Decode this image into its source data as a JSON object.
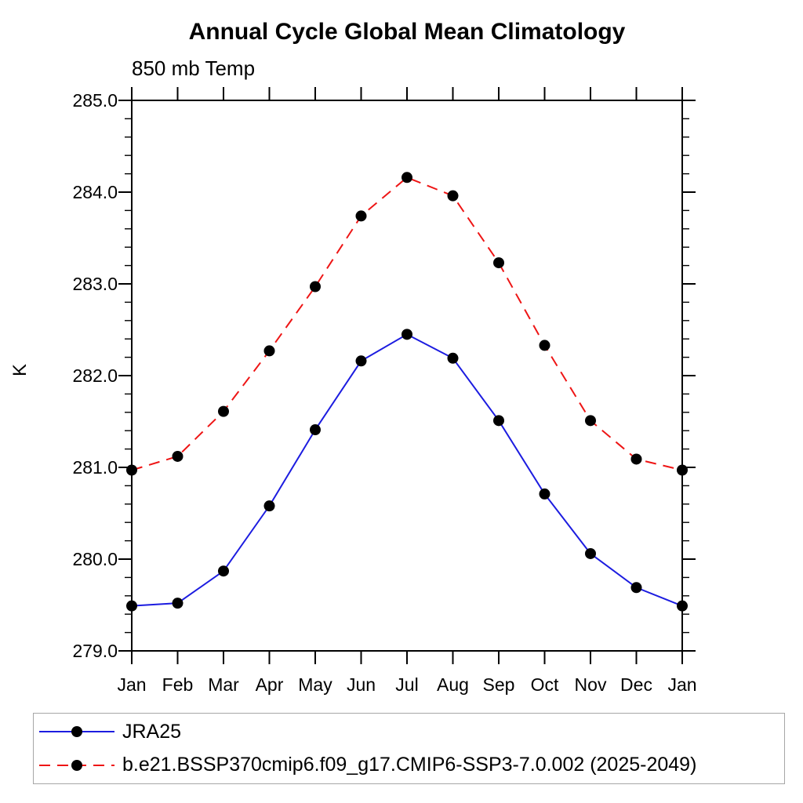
{
  "chart_data": {
    "type": "line",
    "title": "Annual Cycle Global Mean Climatology",
    "subtitle": "850 mb Temp",
    "ylabel": "K",
    "xlabel": "",
    "categories": [
      "Jan",
      "Feb",
      "Mar",
      "Apr",
      "May",
      "Jun",
      "Jul",
      "Aug",
      "Sep",
      "Oct",
      "Nov",
      "Dec",
      "Jan"
    ],
    "y_ticks": [
      "285.0",
      "284.0",
      "283.0",
      "282.0",
      "281.0",
      "280.0",
      "279.0"
    ],
    "ylim": [
      279.0,
      285.0
    ],
    "y_major_step": 1.0,
    "y_minor_step": 0.2,
    "grid": false,
    "legend_position": "bottom",
    "frame_color": "#000000",
    "series": [
      {
        "name": "JRA25",
        "color": "#1c1ce0",
        "style": "solid",
        "marker": "circle",
        "marker_color": "#000000",
        "values": [
          279.49,
          279.52,
          279.87,
          280.58,
          281.41,
          282.16,
          282.45,
          282.19,
          281.51,
          280.71,
          280.06,
          279.69,
          279.49
        ]
      },
      {
        "name": "b.e21.BSSP370cmip6.f09_g17.CMIP6-SSP3-7.0.002 (2025-2049)",
        "color": "#ee1515",
        "style": "dashed",
        "marker": "circle",
        "marker_color": "#000000",
        "values": [
          280.97,
          281.12,
          281.61,
          282.27,
          282.97,
          283.74,
          284.16,
          283.96,
          283.23,
          282.33,
          281.51,
          281.09,
          280.97
        ]
      }
    ]
  }
}
